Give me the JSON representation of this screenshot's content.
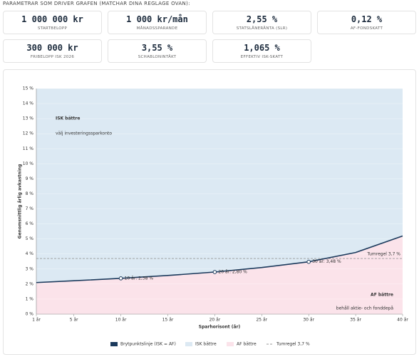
{
  "header": {
    "title": "PARAMETRAR SOM DRIVER GRAFEN (MATCHAR DINA REGLAGE OVAN):"
  },
  "cards": [
    {
      "value": "1 000 000 kr",
      "label": "STARTBELOPP"
    },
    {
      "value": "1 000 kr/mån",
      "label": "MÅNADSSPARANDE"
    },
    {
      "value": "2,55 %",
      "label": "STATSLÅNERÄNTA (SLR)"
    },
    {
      "value": "0,12 %",
      "label": "AF-FONDSKATT"
    },
    {
      "value": "300 000 kr",
      "label": "FRIBELOPP ISK 2026"
    },
    {
      "value": "3,55 %",
      "label": "SCHABLONINTÄKT"
    },
    {
      "value": "1,065 %",
      "label": "EFFEKTIV ISK-SKATT"
    }
  ],
  "chart_data": {
    "type": "line",
    "x_label": "Sparhorisont (år)",
    "y_label": "Genomsnittlig årlig avkastning",
    "xlim": [
      1,
      40
    ],
    "ylim": [
      0,
      15
    ],
    "xticks": [
      {
        "value": 1,
        "label": "1 år"
      },
      {
        "value": 5,
        "label": "5 år"
      },
      {
        "value": 10,
        "label": "10 år"
      },
      {
        "value": 15,
        "label": "15 år"
      },
      {
        "value": 20,
        "label": "20 år"
      },
      {
        "value": 25,
        "label": "25 år"
      },
      {
        "value": 30,
        "label": "30 år"
      },
      {
        "value": 35,
        "label": "35 år"
      },
      {
        "value": 40,
        "label": "40 år"
      }
    ],
    "yticks": [
      {
        "value": 0,
        "label": "0 %"
      },
      {
        "value": 1,
        "label": "1 %"
      },
      {
        "value": 2,
        "label": "2 %"
      },
      {
        "value": 3,
        "label": "3 %"
      },
      {
        "value": 4,
        "label": "4 %"
      },
      {
        "value": 5,
        "label": "5 %"
      },
      {
        "value": 6,
        "label": "6 %"
      },
      {
        "value": 7,
        "label": "7 %"
      },
      {
        "value": 8,
        "label": "8 %"
      },
      {
        "value": 9,
        "label": "9 %"
      },
      {
        "value": 10,
        "label": "10 %"
      },
      {
        "value": 11,
        "label": "11 %"
      },
      {
        "value": 12,
        "label": "12 %"
      },
      {
        "value": 13,
        "label": "13 %"
      },
      {
        "value": 14,
        "label": "14 %"
      },
      {
        "value": 15,
        "label": "15 %"
      }
    ],
    "series": [
      {
        "name": "Brytpunktslinje (ISK = AF)",
        "color": "#1b3a5c",
        "x": [
          1,
          5,
          10,
          15,
          20,
          25,
          30,
          35,
          40
        ],
        "values": [
          2.1,
          2.22,
          2.38,
          2.57,
          2.8,
          3.1,
          3.48,
          4.1,
          5.2
        ]
      }
    ],
    "points": {
      "x": [
        10,
        20,
        30
      ],
      "values": [
        2.38,
        2.8,
        3.48
      ],
      "value_labels": [
        "10 år: 2,38 %",
        "20 år: 2,80 %",
        "30 år: 3,48 %"
      ]
    },
    "regions": [
      {
        "name": "ISK bättre",
        "color": "#dce9f3",
        "text_color": "#8aa7bf",
        "sublabel": "välj investeringssparkonto"
      },
      {
        "name": "AF bättre",
        "color": "#fbe3ea",
        "text_color": "#e6a7bc",
        "sublabel": "behåll aktie- och fonddepå"
      }
    ],
    "threshold": {
      "value": 3.7,
      "label": "Tumregel 3,7 %",
      "color": "#999999"
    }
  }
}
